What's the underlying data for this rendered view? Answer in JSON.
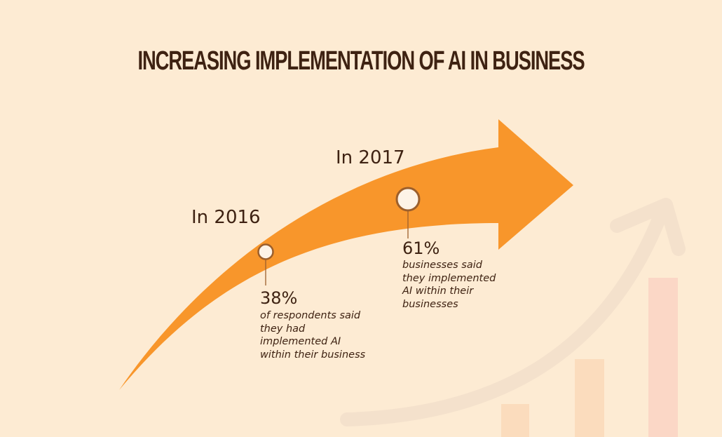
{
  "title": "INCREASING IMPLEMENTATION OF AI IN BUSINESS",
  "milestones": [
    {
      "year_label": "In 2016",
      "value": "38%",
      "description_lines": [
        "of respondents said",
        "they had",
        "implemented AI",
        "within their business"
      ]
    },
    {
      "year_label": "In 2017",
      "value": "61%",
      "description_lines": [
        "businesses said",
        "they implemented",
        "AI within their",
        "businesses"
      ]
    }
  ],
  "colors": {
    "background": "#fdebd3",
    "arrow": "#f8962b",
    "text": "#3e2212",
    "marker_fill": "#fdf3e7",
    "marker_stroke": "#9c5f2c"
  },
  "icons": [
    "upward-trend-arrow-icon",
    "bar-chart-icon"
  ]
}
